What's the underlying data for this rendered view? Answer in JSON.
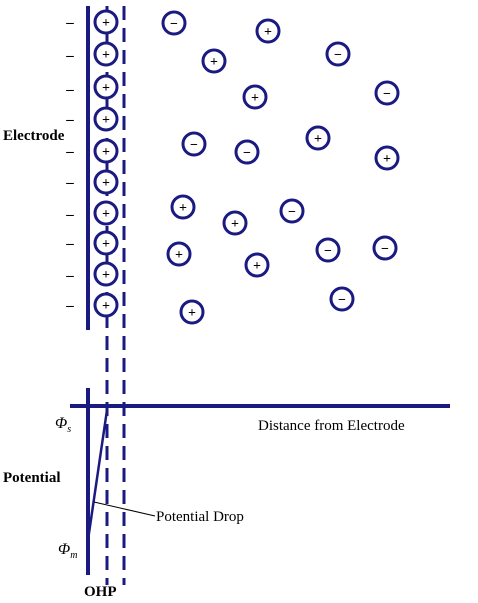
{
  "labels": {
    "electrode": "Electrode",
    "distance_axis": "Distance from Electrode",
    "potential": "Potential",
    "potential_drop": "Potential Drop",
    "ohp": "OHP",
    "phi_s_symbol": "Φ",
    "phi_s_sub": "s",
    "phi_m_symbol": "Φ",
    "phi_m_sub": "m"
  },
  "electrode_charges": [
    "-",
    "-",
    "-",
    "-",
    "-",
    "-",
    "-",
    "-",
    "-",
    "-"
  ],
  "adsorbed_ions": [
    "+",
    "+",
    "+",
    "+",
    "+",
    "+",
    "+",
    "+",
    "+",
    "+"
  ],
  "solution_ions": [
    "-",
    "+",
    "+",
    "-",
    "+",
    "-",
    "-",
    "+",
    "-",
    "+",
    "+",
    "-",
    "+",
    "+",
    "-",
    "-",
    "+",
    "+",
    "-",
    "+"
  ],
  "colors": {
    "ion": "#1a1a80",
    "line": "#1a1a80",
    "text": "#000000"
  }
}
